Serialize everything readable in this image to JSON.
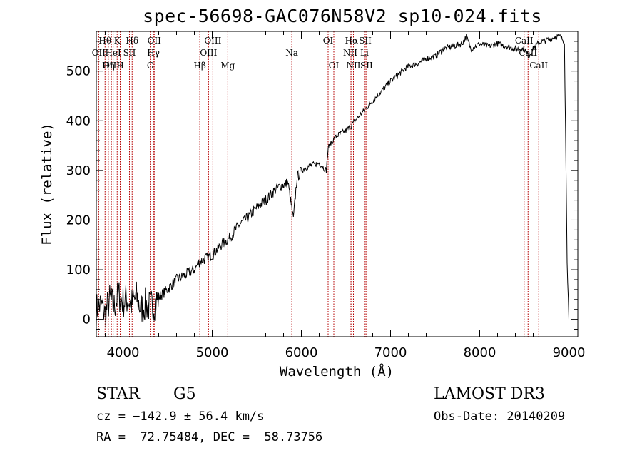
{
  "chart_data": {
    "type": "line",
    "title": "spec-56698-GAC076N58V2_sp10-024.fits",
    "xlabel": "Wavelength (Å)",
    "ylabel": "Flux (relative)",
    "xlim": [
      3700,
      9100
    ],
    "ylim": [
      -35,
      580
    ],
    "xticks": [
      4000,
      5000,
      6000,
      7000,
      8000,
      9000
    ],
    "yticks": [
      0,
      100,
      200,
      300,
      400,
      500
    ],
    "series": [
      {
        "name": "spectrum",
        "x": [
          3700,
          3750,
          3800,
          3850,
          3900,
          3950,
          4000,
          4050,
          4100,
          4150,
          4200,
          4250,
          4300,
          4350,
          4400,
          4500,
          4600,
          4700,
          4800,
          4850,
          4900,
          5000,
          5100,
          5200,
          5300,
          5400,
          5500,
          5600,
          5700,
          5780,
          5850,
          5910,
          5950,
          6000,
          6100,
          6200,
          6280,
          6300,
          6350,
          6400,
          6500,
          6560,
          6600,
          6700,
          6800,
          6900,
          7000,
          7100,
          7200,
          7300,
          7400,
          7500,
          7600,
          7700,
          7800,
          7850,
          7900,
          8000,
          8100,
          8200,
          8300,
          8400,
          8500,
          8550,
          8600,
          8650,
          8700,
          8800,
          8850,
          8900,
          8950,
          8980,
          9000
        ],
        "values": [
          20,
          30,
          10,
          40,
          25,
          50,
          35,
          40,
          30,
          45,
          20,
          30,
          25,
          30,
          45,
          60,
          80,
          90,
          100,
          115,
          120,
          130,
          150,
          165,
          190,
          205,
          225,
          240,
          260,
          270,
          275,
          200,
          285,
          300,
          310,
          315,
          300,
          345,
          360,
          370,
          380,
          390,
          400,
          420,
          440,
          460,
          480,
          495,
          510,
          515,
          525,
          530,
          545,
          550,
          555,
          570,
          545,
          555,
          550,
          555,
          550,
          545,
          545,
          530,
          545,
          555,
          560,
          565,
          570,
          570,
          560,
          120,
          0
        ]
      }
    ],
    "line_markers": [
      {
        "label": "Hθ",
        "x": 3798
      },
      {
        "label": "K",
        "x": 3934
      },
      {
        "label": "Hδ",
        "x": 4102
      },
      {
        "label": "OII",
        "x": 4350
      },
      {
        "label": "OIII",
        "x": 5007
      },
      {
        "label": "OI",
        "x": 6300
      },
      {
        "label": "Hα",
        "x": 6563
      },
      {
        "label": "SII",
        "x": 6716
      },
      {
        "label": "CaII",
        "x": 8498
      },
      {
        "label": "OII",
        "x": 3727
      },
      {
        "label": "HeI",
        "x": 3889
      },
      {
        "label": "SII",
        "x": 4072
      },
      {
        "label": "Hγ",
        "x": 4341
      },
      {
        "label": "OIII",
        "x": 4959
      },
      {
        "label": "Na",
        "x": 5893
      },
      {
        "label": "NII",
        "x": 6548
      },
      {
        "label": "Li",
        "x": 6707
      },
      {
        "label": "CaII",
        "x": 8542
      },
      {
        "label": "OIII",
        "x": 3869
      },
      {
        "label": "Hη",
        "x": 3835
      },
      {
        "label": "H",
        "x": 3968
      },
      {
        "label": "G",
        "x": 4305
      },
      {
        "label": "Hβ",
        "x": 4861
      },
      {
        "label": "Mg",
        "x": 5175
      },
      {
        "label": "OI",
        "x": 6364
      },
      {
        "label": "NII",
        "x": 6584
      },
      {
        "label": "SII",
        "x": 6731
      },
      {
        "label": "CaII",
        "x": 8662
      }
    ]
  },
  "info": {
    "class": "STAR",
    "subclass": "G5",
    "survey": "LAMOST DR3",
    "cz": "cz = −142.9 ± 56.4 km/s",
    "obs_date": "Obs-Date: 20140209",
    "radec": "RA =  72.75484, DEC =  58.73756"
  },
  "colors": {
    "spectrum": "#000000",
    "marker": "#b40000",
    "axes": "#000000"
  }
}
